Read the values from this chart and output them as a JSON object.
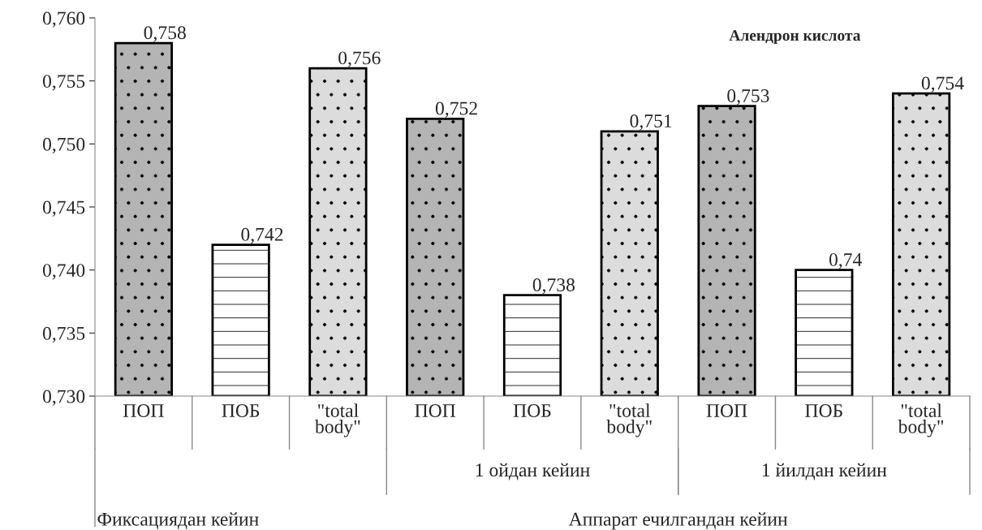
{
  "chart_data": {
    "type": "bar",
    "title": "Алендрон кислота",
    "categories": [
      "ПОП",
      "ПОБ",
      "\"total\nbody\"",
      "ПОП",
      "ПОБ",
      "\"total\nbody\"",
      "ПОП",
      "ПОБ",
      "\"total\nbody\""
    ],
    "values": [
      0.758,
      0.742,
      0.756,
      0.752,
      0.738,
      0.751,
      0.753,
      0.74,
      0.754
    ],
    "colors": [
      "#b4b4b4",
      "#ffffff",
      "#dcdcdc",
      "#b4b4b4",
      "#ffffff",
      "#dcdcdc",
      "#b4b4b4",
      "#ffffff",
      "#dcdcdc"
    ],
    "value_labels": [
      "0,758",
      "0,742",
      "0,756",
      "0,752",
      "0,738",
      "0,751",
      "0,753",
      "0,74",
      "0,754"
    ],
    "ylim": [
      0.73,
      0.76
    ],
    "yticks": [
      {
        "value": 0.73,
        "label": "0,730"
      },
      {
        "value": 0.735,
        "label": "0,735"
      },
      {
        "value": 0.74,
        "label": "0,740"
      },
      {
        "value": 0.745,
        "label": "0,745"
      },
      {
        "value": 0.75,
        "label": "0,750"
      },
      {
        "value": 0.755,
        "label": "0,755"
      },
      {
        "value": 0.76,
        "label": "0,760"
      }
    ],
    "annotations": [
      "1 ойдан кейин",
      "1 йилдан кейин",
      "Фиксациядан кейин",
      "Аппарат ечилгандан кейин"
    ],
    "grid": false,
    "legend": false
  }
}
